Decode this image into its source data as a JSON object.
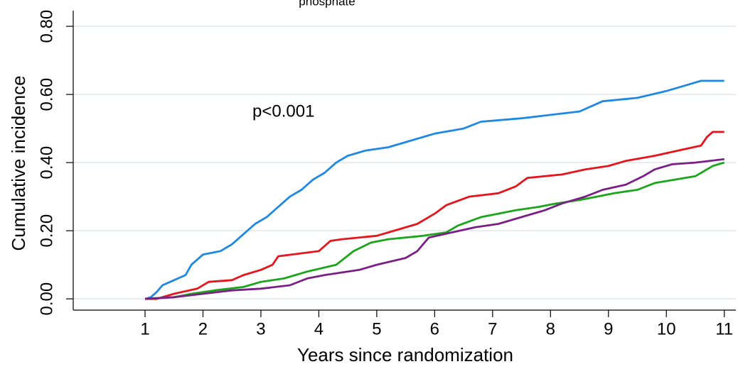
{
  "chart_data": {
    "type": "line",
    "title": "phosphate",
    "x_label": "Years since randomization",
    "y_label": "Cumulative incidence",
    "annotation": "p<0.001",
    "xlim": [
      -0.24,
      11.2
    ],
    "xticks": [
      1,
      2,
      3,
      4,
      5,
      6,
      7,
      8,
      9,
      10,
      11
    ],
    "ylim": [
      -0.033,
      0.846
    ],
    "yticks": [
      {
        "value": 0,
        "label": "0.00"
      },
      {
        "value": 0.2,
        "label": "0.20"
      },
      {
        "value": 0.4,
        "label": "0.40"
      },
      {
        "value": 0.6,
        "label": "0.60"
      },
      {
        "value": 0.8,
        "label": "0.80"
      }
    ],
    "grid": true,
    "series": [
      {
        "color": "#1e88e5",
        "x": [
          1.0,
          1.1,
          1.2,
          1.3,
          1.5,
          1.7,
          1.8,
          2.0,
          2.3,
          2.5,
          2.7,
          2.9,
          3.1,
          3.3,
          3.5,
          3.7,
          3.9,
          4.1,
          4.3,
          4.5,
          4.8,
          5.2,
          5.6,
          6.0,
          6.5,
          6.8,
          7.5,
          8.0,
          8.5,
          8.9,
          9.5,
          10.0,
          10.4,
          10.6,
          11.0
        ],
        "values": [
          0,
          0.005,
          0.02,
          0.04,
          0.055,
          0.07,
          0.1,
          0.13,
          0.14,
          0.16,
          0.19,
          0.22,
          0.24,
          0.27,
          0.3,
          0.32,
          0.35,
          0.37,
          0.4,
          0.42,
          0.435,
          0.445,
          0.465,
          0.485,
          0.5,
          0.52,
          0.53,
          0.54,
          0.55,
          0.58,
          0.59,
          0.61,
          0.63,
          0.64,
          0.64
        ]
      },
      {
        "color": "#e8141c",
        "x": [
          1.0,
          1.2,
          1.5,
          1.9,
          2.1,
          2.5,
          2.7,
          3.0,
          3.2,
          3.3,
          4.0,
          4.2,
          4.4,
          5.0,
          5.3,
          5.7,
          6.0,
          6.2,
          6.6,
          7.1,
          7.4,
          7.6,
          8.2,
          8.6,
          9.0,
          9.3,
          9.8,
          10.2,
          10.6,
          10.7,
          10.8,
          11.0
        ],
        "values": [
          0,
          0,
          0.015,
          0.03,
          0.05,
          0.055,
          0.07,
          0.085,
          0.1,
          0.125,
          0.14,
          0.17,
          0.175,
          0.185,
          0.2,
          0.22,
          0.25,
          0.275,
          0.3,
          0.31,
          0.33,
          0.355,
          0.365,
          0.38,
          0.39,
          0.405,
          0.42,
          0.435,
          0.45,
          0.475,
          0.49,
          0.49
        ]
      },
      {
        "color": "#1aa51a",
        "x": [
          1.0,
          1.5,
          1.8,
          2.2,
          2.7,
          3.0,
          3.4,
          3.8,
          4.3,
          4.6,
          4.9,
          5.2,
          5.8,
          6.2,
          6.4,
          6.8,
          7.1,
          7.4,
          7.8,
          8.1,
          8.5,
          8.8,
          9.1,
          9.5,
          9.8,
          10.5,
          10.8,
          11.0
        ],
        "values": [
          0,
          0.005,
          0.015,
          0.025,
          0.035,
          0.05,
          0.06,
          0.08,
          0.1,
          0.14,
          0.165,
          0.175,
          0.185,
          0.195,
          0.215,
          0.24,
          0.25,
          0.26,
          0.27,
          0.28,
          0.29,
          0.3,
          0.31,
          0.32,
          0.34,
          0.36,
          0.39,
          0.4
        ]
      },
      {
        "color": "#7b1f86",
        "x": [
          1.0,
          1.5,
          2.0,
          2.5,
          3.0,
          3.5,
          3.8,
          4.1,
          4.7,
          5.0,
          5.5,
          5.7,
          5.9,
          6.3,
          6.7,
          7.1,
          7.5,
          7.9,
          8.2,
          8.6,
          8.9,
          9.3,
          9.6,
          9.8,
          10.1,
          10.5,
          11.0
        ],
        "values": [
          0,
          0.005,
          0.015,
          0.025,
          0.03,
          0.04,
          0.06,
          0.07,
          0.085,
          0.1,
          0.12,
          0.14,
          0.18,
          0.195,
          0.21,
          0.22,
          0.24,
          0.26,
          0.28,
          0.3,
          0.32,
          0.335,
          0.36,
          0.38,
          0.395,
          0.4,
          0.41
        ]
      }
    ]
  }
}
